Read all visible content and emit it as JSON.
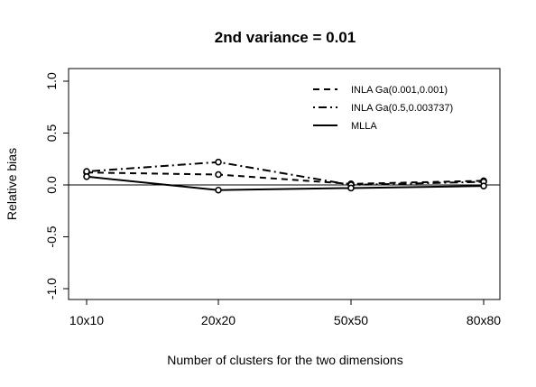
{
  "chart_data": {
    "type": "line",
    "title": "2nd variance = 0.01",
    "xlabel": "Number of clusters for the two dimensions",
    "ylabel": "Relative bias",
    "categories": [
      "10x10",
      "20x20",
      "50x50",
      "80x80"
    ],
    "ylim": [
      -1.0,
      1.0
    ],
    "yticks": [
      -1.0,
      -0.5,
      0.0,
      0.5,
      1.0
    ],
    "ytick_labels": [
      "-1.0",
      "-0.5",
      "0.0",
      "0.5",
      "1.0"
    ],
    "reference_line_y": 0,
    "legend_position": "top-right",
    "series": [
      {
        "name": "INLA Ga(0.001,0.001)",
        "line_style": "dashed",
        "values": [
          0.12,
          0.1,
          0.01,
          0.04
        ]
      },
      {
        "name": "INLA Ga(0.5,0.003737)",
        "line_style": "dotdash",
        "values": [
          0.13,
          0.22,
          0.0,
          0.03
        ]
      },
      {
        "name": "MLLA",
        "line_style": "solid",
        "values": [
          0.08,
          -0.05,
          -0.03,
          -0.01
        ]
      }
    ]
  }
}
